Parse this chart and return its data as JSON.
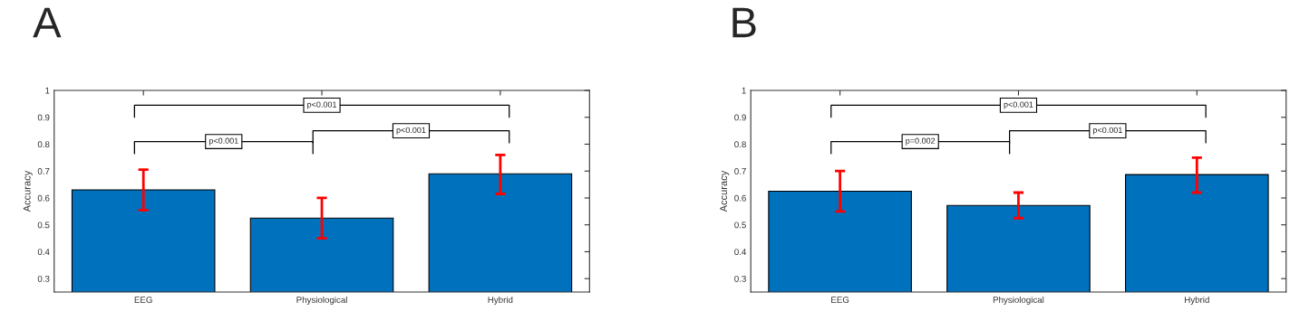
{
  "chart_data": [
    {
      "type": "bar",
      "title": "A",
      "ylabel": "Accuracy",
      "categories": [
        "EEG",
        "Physiological",
        "Hybrid"
      ],
      "values": [
        0.63,
        0.525,
        0.69
      ],
      "color": "#0072bd",
      "errors": [
        [
          0.555,
          0.705
        ],
        [
          0.45,
          0.6
        ],
        [
          0.615,
          0.76
        ]
      ],
      "ylim": [
        0.25,
        1
      ],
      "yticks": [
        0.3,
        0.4,
        0.5,
        0.6,
        0.7,
        0.8,
        0.9,
        1
      ],
      "grid": false,
      "annotations": [
        "p<0.001",
        "p<0.001",
        "p<0.001"
      ]
    },
    {
      "type": "bar",
      "title": "B",
      "ylabel": "Accuracy",
      "categories": [
        "EEG",
        "Physiological",
        "Hybrid"
      ],
      "values": [
        0.625,
        0.572,
        0.687
      ],
      "color": "#0072bd",
      "errors": [
        [
          0.55,
          0.7
        ],
        [
          0.525,
          0.62
        ],
        [
          0.62,
          0.75
        ]
      ],
      "ylim": [
        0.25,
        1
      ],
      "yticks": [
        0.3,
        0.4,
        0.5,
        0.6,
        0.7,
        0.8,
        0.9,
        1
      ],
      "grid": false,
      "annotations": [
        "p<0.001",
        "p=0.002",
        "p<0.001"
      ]
    }
  ]
}
